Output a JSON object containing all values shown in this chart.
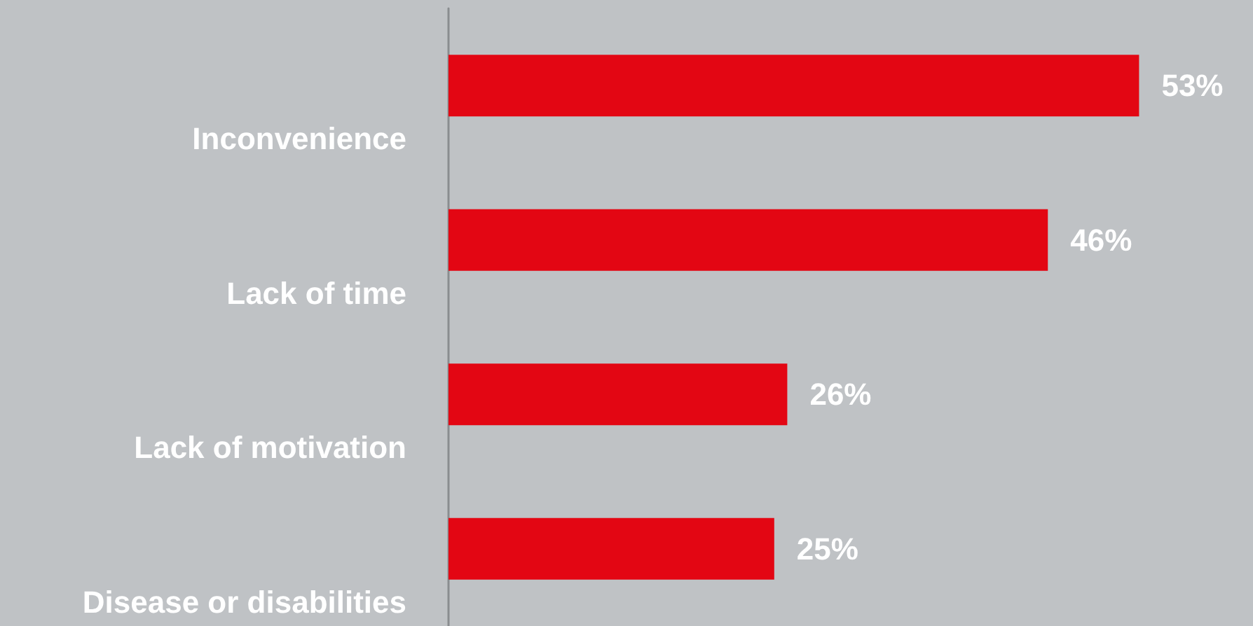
{
  "chart_data": {
    "type": "bar",
    "orientation": "horizontal",
    "categories": [
      "Inconvenience",
      "Lack of time",
      "Lack of motivation",
      "Disease or disabilities"
    ],
    "values": [
      53,
      46,
      26,
      25
    ],
    "color": "#e30613",
    "value_labels": [
      "53%",
      "46%",
      "26%",
      "25%"
    ]
  }
}
